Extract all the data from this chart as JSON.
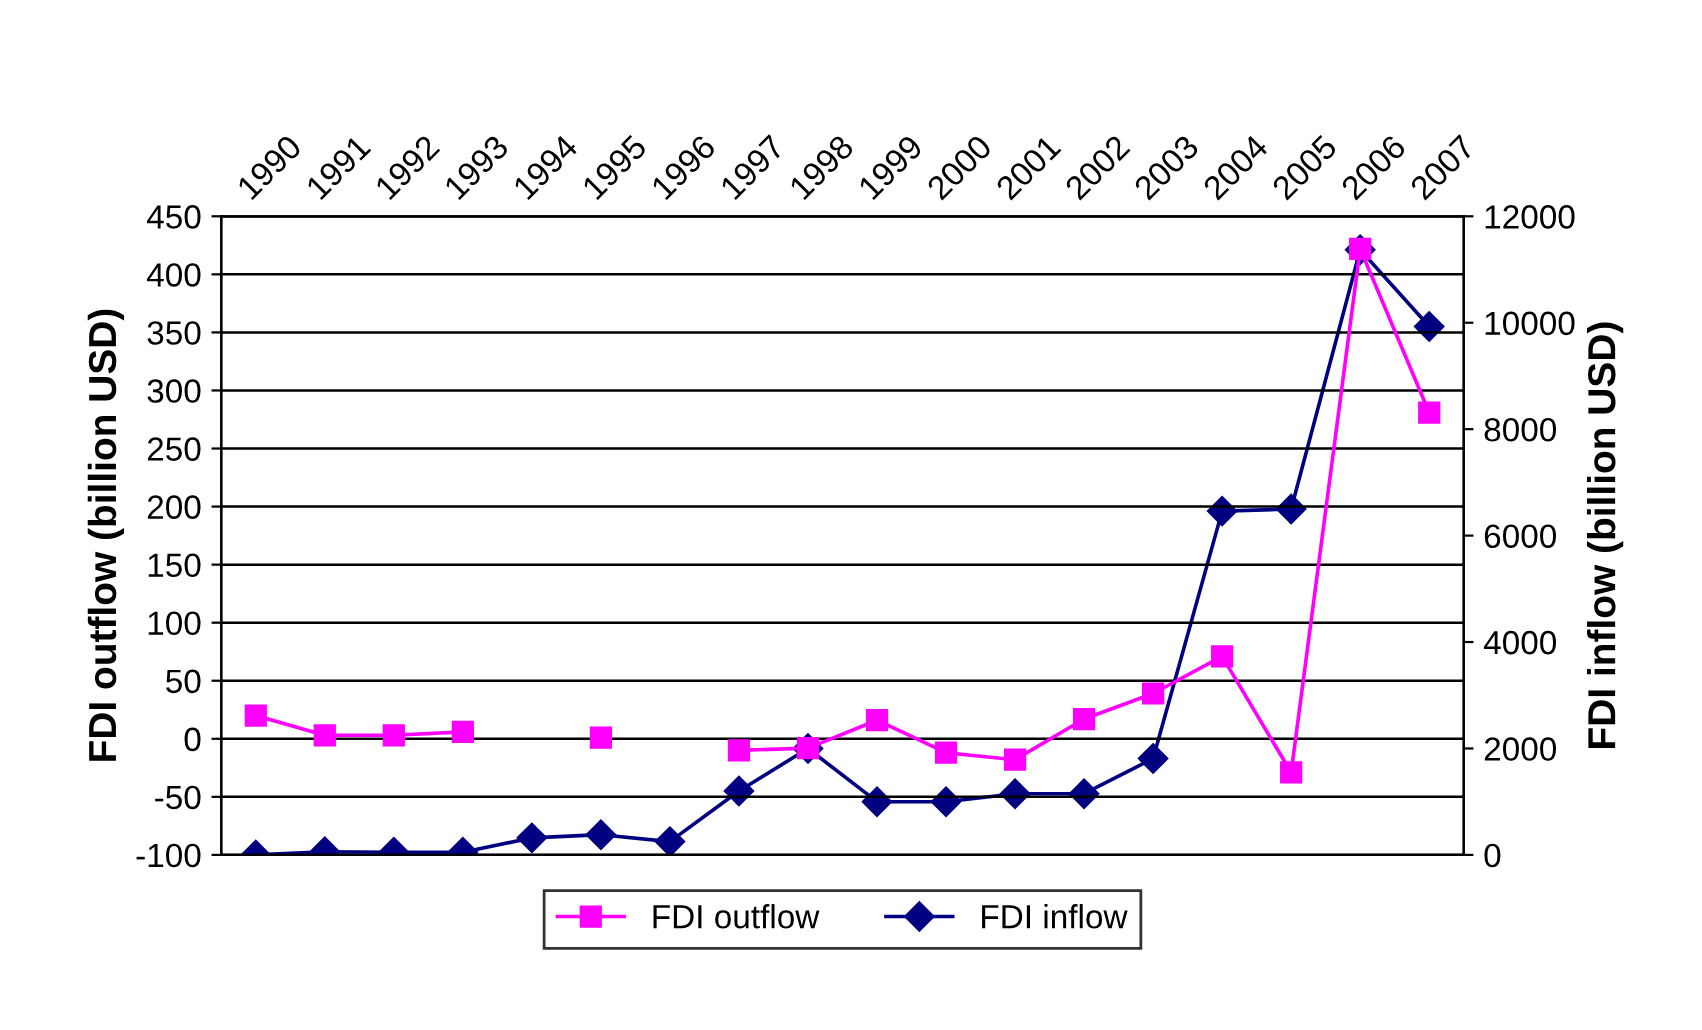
{
  "chart_data": {
    "type": "line",
    "categories": [
      "1990",
      "1991",
      "1992",
      "1993",
      "1994",
      "1995",
      "1996",
      "1997",
      "1998",
      "1999",
      "2000",
      "2001",
      "2002",
      "2003",
      "2004",
      "2005",
      "2006",
      "2007"
    ],
    "ylabel": "FDI outflow (billion USD)",
    "y2label": "FDI inflow (billion USD)",
    "ylim": [
      -100,
      450
    ],
    "yticks": [
      -100,
      -50,
      0,
      50,
      100,
      150,
      200,
      250,
      300,
      350,
      400,
      450
    ],
    "y2lim": [
      0,
      12000
    ],
    "y2ticks": [
      0,
      2000,
      4000,
      6000,
      8000,
      10000,
      12000
    ],
    "grid": "y",
    "legend": "bottom",
    "series": [
      {
        "name": "FDI outflow",
        "color": "#ff00ff",
        "marker": "square",
        "values": [
          20,
          3,
          3,
          6,
          null,
          1,
          null,
          -10,
          -8,
          16,
          -12,
          -18,
          17,
          39,
          71,
          -29,
          422,
          281
        ]
      },
      {
        "name": "FDI inflow",
        "color": "#000080",
        "marker": "diamond",
        "axis": "y2",
        "values": [
          0,
          60,
          50,
          50,
          320,
          380,
          250,
          1200,
          2000,
          1000,
          1000,
          1150,
          1150,
          1810,
          6460,
          6500,
          11370,
          9930
        ]
      }
    ]
  }
}
